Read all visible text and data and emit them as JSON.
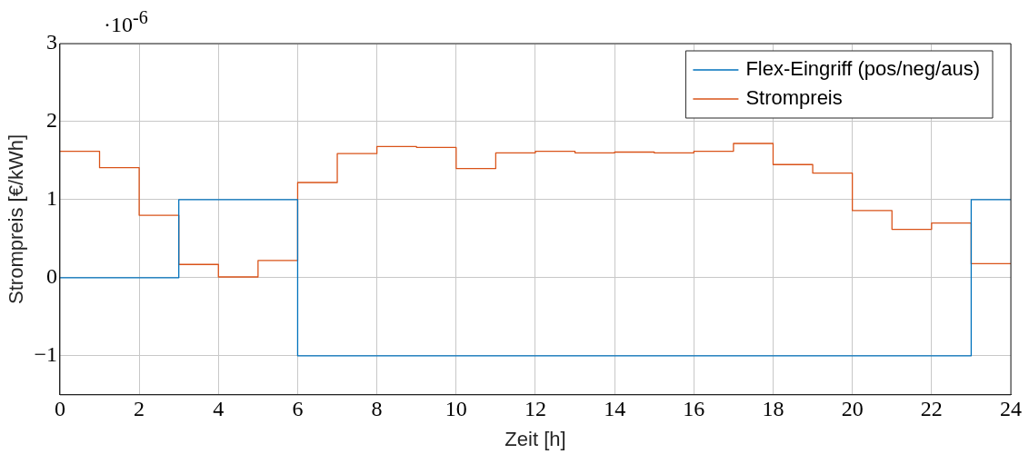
{
  "chart_data": {
    "type": "step",
    "xlabel": "Zeit [h]",
    "ylabel": "Strompreis [€/kWh]",
    "annotations": [
      "·10$^{-6}$"
    ],
    "x": [
      0,
      1,
      2,
      3,
      4,
      5,
      6,
      7,
      8,
      9,
      10,
      11,
      12,
      13,
      14,
      15,
      16,
      17,
      18,
      19,
      20,
      21,
      22,
      23,
      24
    ],
    "series": [
      {
        "name": "Flex-Eingriff (pos/neg/aus)",
        "color": "#0072bd",
        "values": [
          0,
          0,
          0,
          1,
          1,
          1,
          -1,
          -1,
          -1,
          -1,
          -1,
          -1,
          -1,
          -1,
          -1,
          -1,
          -1,
          -1,
          -1,
          -1,
          -1,
          -1,
          -1,
          1,
          1
        ]
      },
      {
        "name": "Strompreis",
        "color": "#d95319",
        "values": [
          1.62,
          1.41,
          0.8,
          0.17,
          0.01,
          0.22,
          1.22,
          1.59,
          1.68,
          1.67,
          1.4,
          1.6,
          1.62,
          1.6,
          1.61,
          1.6,
          1.62,
          1.72,
          1.45,
          1.34,
          0.86,
          0.62,
          0.7,
          0.18,
          0.18
        ]
      }
    ],
    "xlim": [
      0,
      24
    ],
    "xticks": [
      0,
      2,
      4,
      6,
      8,
      10,
      12,
      14,
      16,
      18,
      20,
      22,
      24
    ],
    "ylim": [
      -1.5,
      3
    ],
    "yticks": [
      {
        "value": -1,
        "label": "−1"
      },
      0,
      1,
      2,
      3
    ],
    "grid": true,
    "legend": "top right",
    "marker": "none",
    "line_style": "solid"
  }
}
